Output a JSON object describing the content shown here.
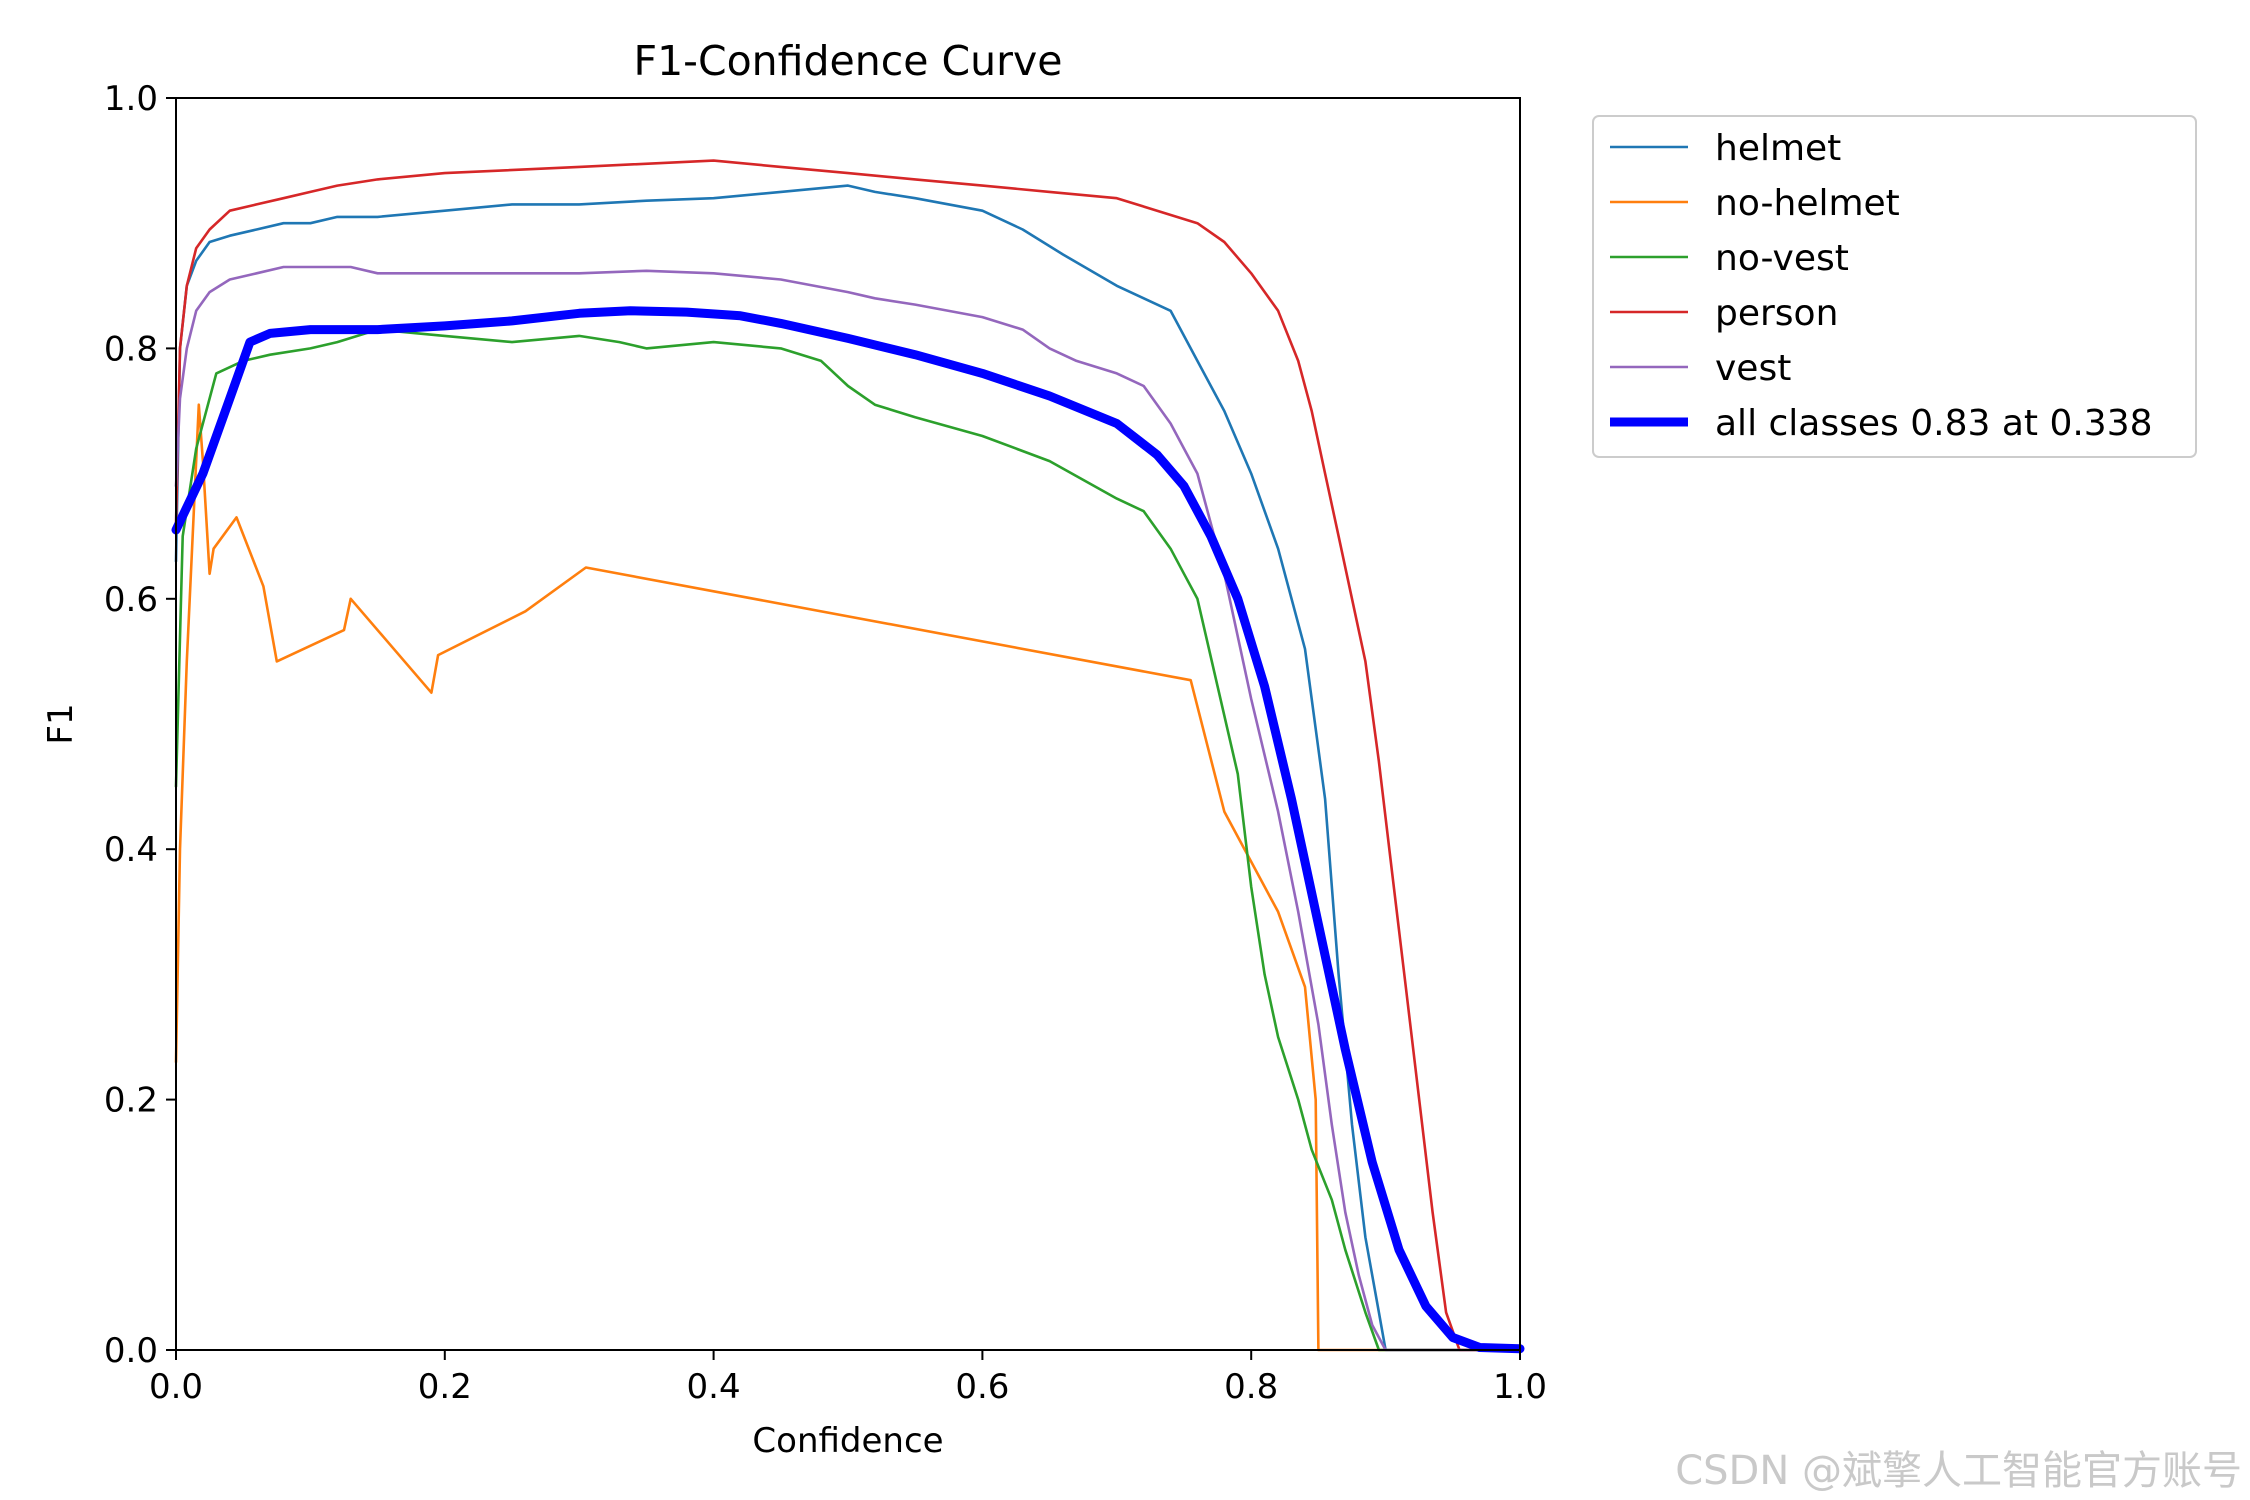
{
  "chart_data": {
    "type": "line",
    "title": "F1-Confidence Curve",
    "xlabel": "Confidence",
    "ylabel": "F1",
    "xlim": [
      0,
      1
    ],
    "ylim": [
      0,
      1
    ],
    "xticks": [
      "0.0",
      "0.2",
      "0.4",
      "0.6",
      "0.8",
      "1.0"
    ],
    "yticks": [
      "0.0",
      "0.2",
      "0.4",
      "0.6",
      "0.8",
      "1.0"
    ],
    "grid": false,
    "legend_position": "outside-top-right",
    "series": [
      {
        "name": "helmet",
        "color": "#1f77b4",
        "points": [
          [
            0,
            0.63
          ],
          [
            0.003,
            0.8
          ],
          [
            0.008,
            0.85
          ],
          [
            0.015,
            0.87
          ],
          [
            0.025,
            0.885
          ],
          [
            0.04,
            0.89
          ],
          [
            0.06,
            0.895
          ],
          [
            0.08,
            0.9
          ],
          [
            0.1,
            0.9
          ],
          [
            0.12,
            0.905
          ],
          [
            0.15,
            0.905
          ],
          [
            0.2,
            0.91
          ],
          [
            0.25,
            0.915
          ],
          [
            0.3,
            0.915
          ],
          [
            0.35,
            0.918
          ],
          [
            0.4,
            0.92
          ],
          [
            0.45,
            0.925
          ],
          [
            0.5,
            0.93
          ],
          [
            0.52,
            0.925
          ],
          [
            0.55,
            0.92
          ],
          [
            0.6,
            0.91
          ],
          [
            0.63,
            0.895
          ],
          [
            0.66,
            0.875
          ],
          [
            0.7,
            0.85
          ],
          [
            0.72,
            0.84
          ],
          [
            0.74,
            0.83
          ],
          [
            0.76,
            0.79
          ],
          [
            0.78,
            0.75
          ],
          [
            0.8,
            0.7
          ],
          [
            0.82,
            0.64
          ],
          [
            0.84,
            0.56
          ],
          [
            0.855,
            0.44
          ],
          [
            0.865,
            0.3
          ],
          [
            0.875,
            0.18
          ],
          [
            0.885,
            0.09
          ],
          [
            0.895,
            0.03
          ],
          [
            0.9,
            0.0
          ],
          [
            1,
            0.0
          ]
        ]
      },
      {
        "name": "no-helmet",
        "color": "#ff7f0e",
        "points": [
          [
            0,
            0.23
          ],
          [
            0.003,
            0.4
          ],
          [
            0.008,
            0.55
          ],
          [
            0.017,
            0.755
          ],
          [
            0.02,
            0.71
          ],
          [
            0.025,
            0.62
          ],
          [
            0.028,
            0.64
          ],
          [
            0.045,
            0.665
          ],
          [
            0.065,
            0.61
          ],
          [
            0.075,
            0.55
          ],
          [
            0.125,
            0.575
          ],
          [
            0.13,
            0.6
          ],
          [
            0.19,
            0.525
          ],
          [
            0.195,
            0.555
          ],
          [
            0.26,
            0.59
          ],
          [
            0.305,
            0.625
          ],
          [
            0.755,
            0.535
          ],
          [
            0.78,
            0.43
          ],
          [
            0.82,
            0.35
          ],
          [
            0.84,
            0.29
          ],
          [
            0.848,
            0.2
          ],
          [
            0.85,
            0.0
          ],
          [
            1,
            0.0
          ]
        ]
      },
      {
        "name": "no-vest",
        "color": "#2ca02c",
        "points": [
          [
            0,
            0.45
          ],
          [
            0.005,
            0.65
          ],
          [
            0.015,
            0.72
          ],
          [
            0.03,
            0.78
          ],
          [
            0.05,
            0.79
          ],
          [
            0.07,
            0.795
          ],
          [
            0.1,
            0.8
          ],
          [
            0.12,
            0.805
          ],
          [
            0.15,
            0.815
          ],
          [
            0.2,
            0.81
          ],
          [
            0.25,
            0.805
          ],
          [
            0.3,
            0.81
          ],
          [
            0.33,
            0.805
          ],
          [
            0.35,
            0.8
          ],
          [
            0.4,
            0.805
          ],
          [
            0.45,
            0.8
          ],
          [
            0.48,
            0.79
          ],
          [
            0.5,
            0.77
          ],
          [
            0.52,
            0.755
          ],
          [
            0.55,
            0.745
          ],
          [
            0.6,
            0.73
          ],
          [
            0.65,
            0.71
          ],
          [
            0.7,
            0.68
          ],
          [
            0.72,
            0.67
          ],
          [
            0.74,
            0.64
          ],
          [
            0.75,
            0.62
          ],
          [
            0.76,
            0.6
          ],
          [
            0.775,
            0.53
          ],
          [
            0.79,
            0.46
          ],
          [
            0.8,
            0.37
          ],
          [
            0.81,
            0.3
          ],
          [
            0.82,
            0.25
          ],
          [
            0.835,
            0.2
          ],
          [
            0.845,
            0.16
          ],
          [
            0.86,
            0.12
          ],
          [
            0.87,
            0.08
          ],
          [
            0.885,
            0.03
          ],
          [
            0.895,
            0.0
          ],
          [
            1,
            0.0
          ]
        ]
      },
      {
        "name": "person",
        "color": "#d62728",
        "points": [
          [
            0,
            0.66
          ],
          [
            0.003,
            0.8
          ],
          [
            0.008,
            0.85
          ],
          [
            0.015,
            0.88
          ],
          [
            0.025,
            0.895
          ],
          [
            0.04,
            0.91
          ],
          [
            0.06,
            0.915
          ],
          [
            0.08,
            0.92
          ],
          [
            0.1,
            0.925
          ],
          [
            0.12,
            0.93
          ],
          [
            0.15,
            0.935
          ],
          [
            0.2,
            0.94
          ],
          [
            0.3,
            0.945
          ],
          [
            0.4,
            0.95
          ],
          [
            0.45,
            0.945
          ],
          [
            0.5,
            0.94
          ],
          [
            0.55,
            0.935
          ],
          [
            0.6,
            0.93
          ],
          [
            0.65,
            0.925
          ],
          [
            0.7,
            0.92
          ],
          [
            0.73,
            0.91
          ],
          [
            0.76,
            0.9
          ],
          [
            0.78,
            0.885
          ],
          [
            0.8,
            0.86
          ],
          [
            0.82,
            0.83
          ],
          [
            0.835,
            0.79
          ],
          [
            0.845,
            0.75
          ],
          [
            0.855,
            0.7
          ],
          [
            0.865,
            0.65
          ],
          [
            0.875,
            0.6
          ],
          [
            0.885,
            0.55
          ],
          [
            0.895,
            0.47
          ],
          [
            0.905,
            0.38
          ],
          [
            0.915,
            0.29
          ],
          [
            0.925,
            0.2
          ],
          [
            0.935,
            0.11
          ],
          [
            0.945,
            0.03
          ],
          [
            0.955,
            0.0
          ],
          [
            1,
            0.0
          ]
        ]
      },
      {
        "name": "vest",
        "color": "#9467bd",
        "points": [
          [
            0,
            0.69
          ],
          [
            0.003,
            0.76
          ],
          [
            0.008,
            0.8
          ],
          [
            0.015,
            0.83
          ],
          [
            0.025,
            0.845
          ],
          [
            0.04,
            0.855
          ],
          [
            0.06,
            0.86
          ],
          [
            0.08,
            0.865
          ],
          [
            0.1,
            0.865
          ],
          [
            0.13,
            0.865
          ],
          [
            0.15,
            0.86
          ],
          [
            0.2,
            0.86
          ],
          [
            0.25,
            0.86
          ],
          [
            0.3,
            0.86
          ],
          [
            0.35,
            0.862
          ],
          [
            0.4,
            0.86
          ],
          [
            0.45,
            0.855
          ],
          [
            0.5,
            0.845
          ],
          [
            0.52,
            0.84
          ],
          [
            0.55,
            0.835
          ],
          [
            0.6,
            0.825
          ],
          [
            0.63,
            0.815
          ],
          [
            0.65,
            0.8
          ],
          [
            0.67,
            0.79
          ],
          [
            0.7,
            0.78
          ],
          [
            0.72,
            0.77
          ],
          [
            0.74,
            0.74
          ],
          [
            0.75,
            0.72
          ],
          [
            0.76,
            0.7
          ],
          [
            0.77,
            0.66
          ],
          [
            0.78,
            0.62
          ],
          [
            0.8,
            0.52
          ],
          [
            0.82,
            0.43
          ],
          [
            0.835,
            0.35
          ],
          [
            0.85,
            0.26
          ],
          [
            0.86,
            0.18
          ],
          [
            0.87,
            0.11
          ],
          [
            0.88,
            0.06
          ],
          [
            0.89,
            0.02
          ],
          [
            0.9,
            0.0
          ],
          [
            1,
            0.0
          ]
        ]
      },
      {
        "name": "all classes 0.83 at 0.338",
        "color": "#0000ff",
        "bold": true,
        "points": [
          [
            0,
            0.655
          ],
          [
            0.02,
            0.7
          ],
          [
            0.04,
            0.76
          ],
          [
            0.055,
            0.805
          ],
          [
            0.07,
            0.812
          ],
          [
            0.1,
            0.815
          ],
          [
            0.15,
            0.815
          ],
          [
            0.2,
            0.818
          ],
          [
            0.25,
            0.822
          ],
          [
            0.3,
            0.828
          ],
          [
            0.338,
            0.83
          ],
          [
            0.38,
            0.829
          ],
          [
            0.42,
            0.826
          ],
          [
            0.45,
            0.82
          ],
          [
            0.5,
            0.808
          ],
          [
            0.55,
            0.795
          ],
          [
            0.6,
            0.78
          ],
          [
            0.65,
            0.762
          ],
          [
            0.7,
            0.74
          ],
          [
            0.73,
            0.715
          ],
          [
            0.75,
            0.69
          ],
          [
            0.77,
            0.65
          ],
          [
            0.79,
            0.6
          ],
          [
            0.81,
            0.53
          ],
          [
            0.83,
            0.44
          ],
          [
            0.85,
            0.34
          ],
          [
            0.87,
            0.24
          ],
          [
            0.89,
            0.15
          ],
          [
            0.91,
            0.08
          ],
          [
            0.93,
            0.035
          ],
          [
            0.95,
            0.01
          ],
          [
            0.97,
            0.002
          ],
          [
            1,
            0.001
          ]
        ]
      }
    ]
  },
  "watermark": "CSDN @斌擎人工智能官方账号"
}
